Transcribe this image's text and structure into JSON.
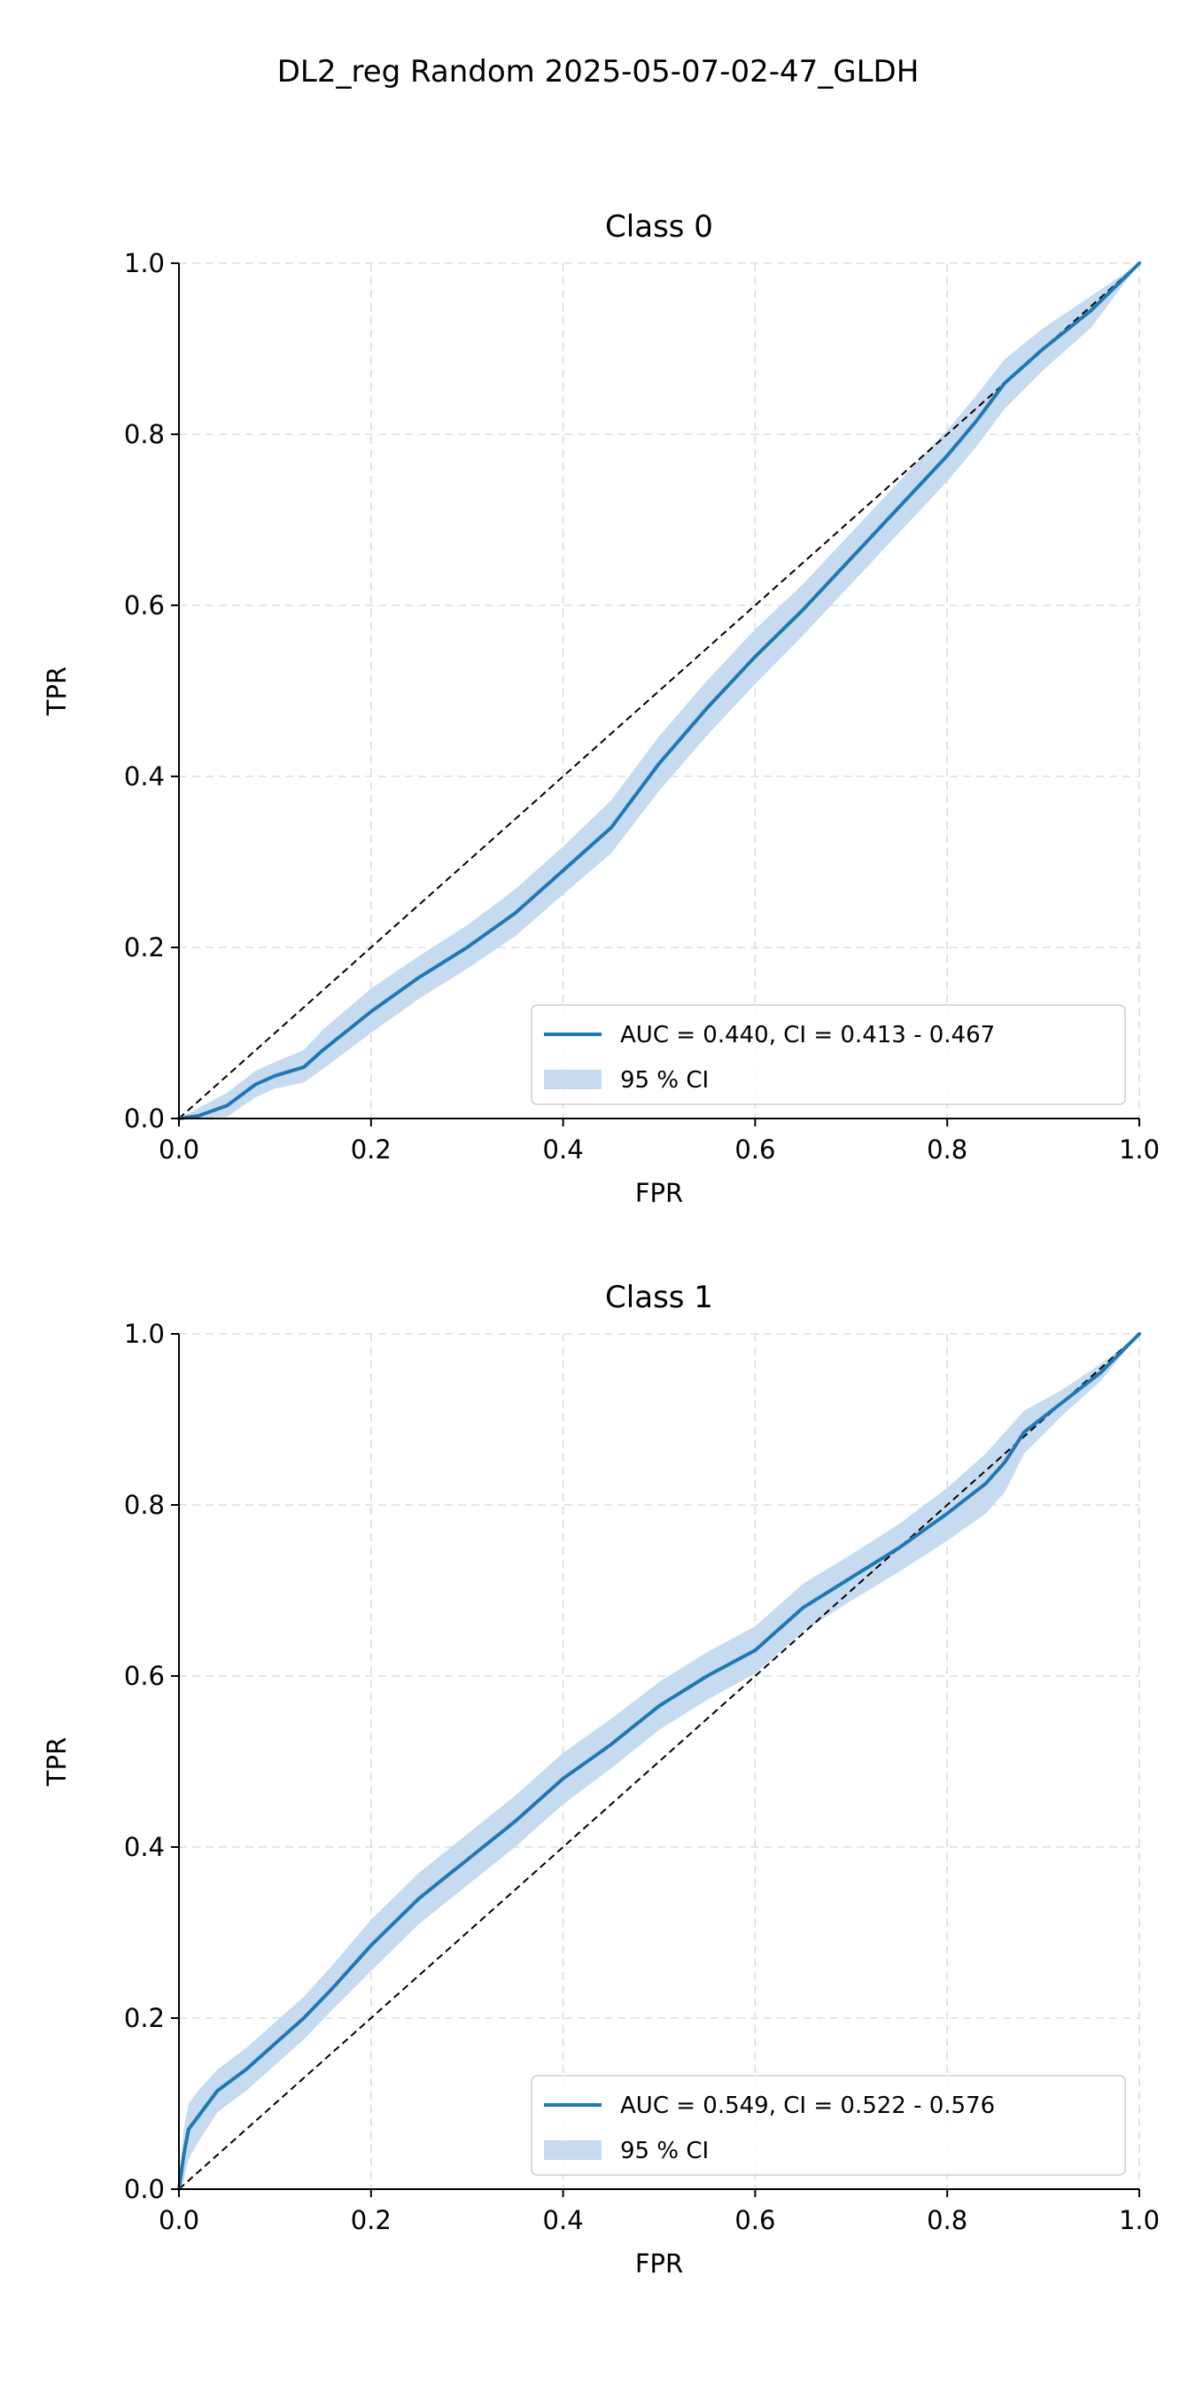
{
  "figure_title": "DL2_reg Random 2025-05-07-02-47_GLDH",
  "chart_data": [
    {
      "type": "line",
      "title": "Class 0",
      "xlabel": "FPR",
      "ylabel": "TPR",
      "xlim": [
        0,
        1
      ],
      "ylim": [
        0,
        1
      ],
      "xticks": [
        "0.0",
        "0.2",
        "0.4",
        "0.6",
        "0.8",
        "1.0"
      ],
      "yticks": [
        "0.0",
        "0.2",
        "0.4",
        "0.6",
        "0.8",
        "1.0"
      ],
      "grid": true,
      "legend_position": "lower-right",
      "series": [
        {
          "name": "AUC = 0.440, CI = 0.413 - 0.467",
          "color": "#1f77b4",
          "x": [
            0,
            0.02,
            0.05,
            0.08,
            0.1,
            0.13,
            0.15,
            0.2,
            0.25,
            0.3,
            0.35,
            0.4,
            0.45,
            0.5,
            0.55,
            0.6,
            0.65,
            0.7,
            0.75,
            0.8,
            0.83,
            0.86,
            0.9,
            0.95,
            1.0
          ],
          "y": [
            0,
            0.003,
            0.015,
            0.04,
            0.05,
            0.06,
            0.08,
            0.125,
            0.165,
            0.2,
            0.24,
            0.29,
            0.34,
            0.415,
            0.48,
            0.54,
            0.595,
            0.655,
            0.715,
            0.775,
            0.815,
            0.86,
            0.9,
            0.945,
            1.0
          ]
        },
        {
          "name": "95 % CI",
          "color": "#c6dbef",
          "type": "band",
          "x": [
            0,
            0.02,
            0.05,
            0.08,
            0.1,
            0.13,
            0.15,
            0.2,
            0.25,
            0.3,
            0.35,
            0.4,
            0.45,
            0.5,
            0.55,
            0.6,
            0.65,
            0.7,
            0.75,
            0.8,
            0.83,
            0.86,
            0.9,
            0.95,
            1.0
          ],
          "lower": [
            0,
            0,
            0.002,
            0.025,
            0.035,
            0.042,
            0.058,
            0.1,
            0.14,
            0.175,
            0.213,
            0.262,
            0.31,
            0.383,
            0.448,
            0.508,
            0.565,
            0.625,
            0.685,
            0.745,
            0.785,
            0.83,
            0.875,
            0.925,
            1.0
          ],
          "upper": [
            0,
            0.012,
            0.03,
            0.056,
            0.066,
            0.08,
            0.104,
            0.152,
            0.19,
            0.226,
            0.268,
            0.318,
            0.372,
            0.447,
            0.512,
            0.572,
            0.625,
            0.685,
            0.745,
            0.805,
            0.845,
            0.888,
            0.924,
            0.962,
            1.0
          ]
        },
        {
          "name": "",
          "type": "reference",
          "color": "#000000",
          "x": [
            0,
            1
          ],
          "y": [
            0,
            1
          ]
        }
      ]
    },
    {
      "type": "line",
      "title": "Class 1",
      "xlabel": "FPR",
      "ylabel": "TPR",
      "xlim": [
        0,
        1
      ],
      "ylim": [
        0,
        1
      ],
      "xticks": [
        "0.0",
        "0.2",
        "0.4",
        "0.6",
        "0.8",
        "1.0"
      ],
      "yticks": [
        "0.0",
        "0.2",
        "0.4",
        "0.6",
        "0.8",
        "1.0"
      ],
      "grid": true,
      "legend_position": "lower-right",
      "series": [
        {
          "name": "AUC = 0.549, CI = 0.522 - 0.576",
          "color": "#1f77b4",
          "x": [
            0,
            0.005,
            0.01,
            0.02,
            0.04,
            0.07,
            0.1,
            0.13,
            0.16,
            0.2,
            0.25,
            0.3,
            0.35,
            0.4,
            0.45,
            0.5,
            0.55,
            0.6,
            0.65,
            0.7,
            0.75,
            0.8,
            0.84,
            0.86,
            0.88,
            0.92,
            0.96,
            1.0
          ],
          "y": [
            0,
            0.04,
            0.07,
            0.085,
            0.115,
            0.14,
            0.17,
            0.2,
            0.235,
            0.285,
            0.34,
            0.385,
            0.43,
            0.48,
            0.52,
            0.565,
            0.6,
            0.63,
            0.68,
            0.715,
            0.75,
            0.79,
            0.825,
            0.85,
            0.885,
            0.92,
            0.955,
            1.0
          ]
        },
        {
          "name": "95 % CI",
          "color": "#c6dbef",
          "type": "band",
          "x": [
            0,
            0.005,
            0.01,
            0.02,
            0.04,
            0.07,
            0.1,
            0.13,
            0.16,
            0.2,
            0.25,
            0.3,
            0.35,
            0.4,
            0.45,
            0.5,
            0.55,
            0.6,
            0.65,
            0.7,
            0.75,
            0.8,
            0.84,
            0.86,
            0.88,
            0.92,
            0.96,
            1.0
          ],
          "lower": [
            0,
            0.01,
            0.035,
            0.055,
            0.09,
            0.115,
            0.145,
            0.175,
            0.21,
            0.255,
            0.31,
            0.355,
            0.4,
            0.45,
            0.492,
            0.537,
            0.572,
            0.603,
            0.652,
            0.688,
            0.722,
            0.758,
            0.79,
            0.815,
            0.86,
            0.905,
            0.945,
            1.0
          ],
          "upper": [
            0,
            0.07,
            0.1,
            0.115,
            0.14,
            0.165,
            0.195,
            0.225,
            0.262,
            0.315,
            0.37,
            0.415,
            0.46,
            0.51,
            0.55,
            0.593,
            0.628,
            0.658,
            0.708,
            0.742,
            0.778,
            0.82,
            0.86,
            0.885,
            0.91,
            0.935,
            0.965,
            1.0
          ]
        },
        {
          "name": "",
          "type": "reference",
          "color": "#000000",
          "x": [
            0,
            1
          ],
          "y": [
            0,
            1
          ]
        }
      ]
    }
  ]
}
